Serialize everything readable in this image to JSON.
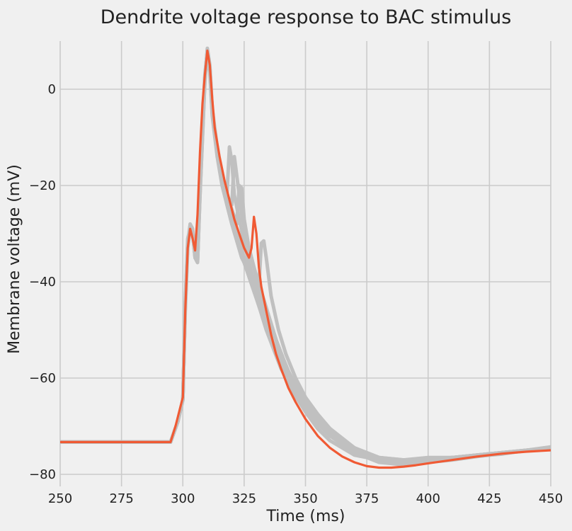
{
  "colors": {
    "background": "#f0f0f0",
    "grid": "#cbcbcb",
    "main_series": "#f05a34",
    "trial_series": "#c0c0c0"
  },
  "chart_data": {
    "type": "line",
    "title": "Dendrite voltage response to BAC stimulus",
    "xlabel": "Time (ms)",
    "ylabel": "Membrane voltage (mV)",
    "xlim": [
      250,
      450
    ],
    "ylim": [
      -82.5,
      10
    ],
    "grid": true,
    "x_ticks": [
      250,
      275,
      300,
      325,
      350,
      375,
      400,
      425,
      450
    ],
    "x_tick_labels": [
      "250",
      "275",
      "300",
      "325",
      "350",
      "375",
      "400",
      "425",
      "450"
    ],
    "y_ticks": [
      0,
      -20,
      -40,
      -60,
      -80
    ],
    "y_tick_labels": [
      "0",
      "−20",
      "−40",
      "−60",
      "−80"
    ],
    "series": [
      {
        "role": "trial",
        "x": [
          250,
          295,
          298,
          300,
          301,
          302,
          303,
          304,
          305,
          306,
          307,
          308,
          309,
          310,
          311,
          312,
          314,
          316,
          318,
          320,
          322,
          325,
          328,
          331,
          334,
          337,
          340,
          345,
          350,
          355,
          360,
          370,
          380,
          390,
          400,
          410,
          420,
          430,
          440,
          450
        ],
        "y": [
          -73.3,
          -73.3,
          -69,
          -64.5,
          -45,
          -32,
          -28,
          -29,
          -35,
          -36,
          -22,
          -10,
          2,
          8.5,
          5,
          -4,
          -12,
          -18,
          -22,
          -26,
          -30,
          -35,
          -40,
          -45,
          -50,
          -54,
          -58,
          -63,
          -67,
          -70.5,
          -73,
          -76,
          -77,
          -77,
          -76.5,
          -76.5,
          -76.2,
          -75.8,
          -75,
          -74.3
        ]
      },
      {
        "role": "trial",
        "x": [
          250,
          295,
          298,
          300,
          301,
          302,
          303,
          304,
          305,
          306,
          307,
          308,
          309,
          310,
          311,
          312,
          314,
          316,
          318,
          319,
          320,
          321,
          323,
          325,
          328,
          331,
          334,
          337,
          340,
          345,
          350,
          355,
          360,
          370,
          380,
          390,
          400,
          410,
          420,
          430,
          440,
          450
        ],
        "y": [
          -73.3,
          -73.3,
          -69,
          -64.5,
          -44,
          -31,
          -29,
          -30,
          -34,
          -35,
          -20,
          -8,
          3,
          8,
          4,
          -5,
          -13,
          -19,
          -22,
          -12,
          -15,
          -22,
          -27,
          -32,
          -38,
          -43,
          -48,
          -53,
          -57,
          -62.5,
          -66,
          -69.5,
          -72,
          -75.5,
          -77,
          -77.5,
          -77,
          -76.5,
          -76,
          -75.5,
          -75,
          -74.5
        ]
      },
      {
        "role": "trial",
        "x": [
          250,
          295,
          298,
          300,
          301,
          302,
          303,
          304,
          305,
          306,
          307,
          308,
          309,
          310,
          311,
          312,
          314,
          316,
          318,
          320,
          321,
          322,
          324,
          326,
          329,
          332,
          335,
          338,
          341,
          345,
          350,
          355,
          360,
          370,
          380,
          390,
          400,
          410,
          420,
          430,
          440,
          450
        ],
        "y": [
          -73.3,
          -73.3,
          -69,
          -64.5,
          -45,
          -31.5,
          -29,
          -30,
          -35,
          -35.5,
          -21,
          -9,
          2.5,
          8,
          4.5,
          -4.5,
          -12.5,
          -18.5,
          -22,
          -24,
          -14,
          -18,
          -26,
          -31,
          -37,
          -42,
          -47,
          -52,
          -56,
          -61,
          -65,
          -69,
          -71.5,
          -75,
          -77,
          -77.5,
          -77,
          -76.5,
          -76,
          -75.5,
          -75,
          -74.6
        ]
      },
      {
        "role": "trial",
        "x": [
          250,
          295,
          298,
          300,
          301,
          302,
          303,
          304,
          305,
          306,
          307,
          308,
          309,
          310,
          311,
          312,
          314,
          316,
          318,
          320,
          322,
          323,
          324,
          325,
          327,
          330,
          333,
          336,
          339,
          342,
          346,
          350,
          355,
          360,
          370,
          380,
          390,
          400,
          410,
          420,
          430,
          440,
          450
        ],
        "y": [
          -73.3,
          -73.3,
          -69,
          -64.5,
          -45,
          -32,
          -28.5,
          -29.5,
          -35,
          -35.5,
          -21,
          -9,
          2.5,
          8.2,
          4.5,
          -4.5,
          -12.5,
          -18.5,
          -22,
          -25,
          -28,
          -20,
          -20.5,
          -27,
          -33,
          -39,
          -44,
          -49,
          -53.5,
          -57.5,
          -61.5,
          -65,
          -68.5,
          -71,
          -74.5,
          -76.5,
          -77,
          -76.8,
          -76.5,
          -76,
          -75.5,
          -75,
          -74.5
        ]
      },
      {
        "role": "trial",
        "x": [
          250,
          295,
          298,
          300,
          301,
          302,
          303,
          304,
          305,
          306,
          307,
          308,
          309,
          310,
          311,
          312,
          314,
          316,
          318,
          320,
          324,
          328,
          331,
          332,
          333,
          334,
          336,
          339,
          342,
          346,
          350,
          355,
          360,
          370,
          380,
          390,
          400,
          410,
          420,
          430,
          440,
          450
        ],
        "y": [
          -73.3,
          -73.3,
          -69,
          -64.5,
          -46,
          -33,
          -29,
          -30,
          -35,
          -36,
          -22,
          -10,
          1.5,
          7.5,
          3.5,
          -5.5,
          -14,
          -20,
          -24,
          -28,
          -35,
          -39,
          -41,
          -32,
          -31.5,
          -35,
          -43,
          -50,
          -55,
          -60,
          -64,
          -67.5,
          -70.5,
          -74.5,
          -76.5,
          -77,
          -77,
          -76.5,
          -76,
          -75.5,
          -75,
          -74.5
        ]
      },
      {
        "role": "trial",
        "x": [
          250,
          295,
          298,
          300,
          301,
          302,
          303,
          304,
          305,
          306,
          307,
          308,
          309,
          310,
          311,
          312,
          314,
          316,
          318,
          320,
          323,
          326,
          329,
          332,
          335,
          338,
          341,
          345,
          350,
          355,
          360,
          370,
          380,
          390,
          400,
          410,
          420,
          430,
          440,
          450
        ],
        "y": [
          -73.3,
          -73.3,
          -69,
          -64.5,
          -45,
          -32,
          -28.5,
          -29.5,
          -34.5,
          -35.5,
          -21,
          -9,
          2,
          8,
          4,
          -5,
          -13.5,
          -19.5,
          -24,
          -28,
          -33,
          -37.5,
          -42,
          -46.5,
          -50.5,
          -54,
          -57,
          -61.5,
          -65.5,
          -69,
          -72,
          -75.5,
          -77.5,
          -78,
          -77.5,
          -77,
          -76.3,
          -75.7,
          -75.1,
          -74.6
        ]
      },
      {
        "role": "main",
        "x": [
          250,
          295,
          297,
          299,
          300,
          301,
          302,
          303,
          304,
          305,
          306,
          307,
          308,
          309,
          310,
          311,
          312,
          313,
          315,
          317,
          319,
          321,
          323,
          325,
          327,
          328,
          329,
          330,
          331,
          332,
          334,
          336,
          338,
          340,
          343,
          346,
          350,
          355,
          360,
          365,
          370,
          375,
          380,
          385,
          390,
          395,
          400,
          410,
          420,
          430,
          440,
          450
        ],
        "y": [
          -73.3,
          -73.3,
          -70,
          -66,
          -64,
          -46,
          -33,
          -29,
          -31,
          -33.5,
          -26,
          -13,
          -3,
          3,
          8,
          5,
          -2,
          -8,
          -14,
          -19,
          -23,
          -27,
          -30,
          -33,
          -35,
          -33,
          -26.5,
          -30,
          -37,
          -41,
          -46,
          -51,
          -55,
          -58,
          -62,
          -65,
          -68.5,
          -72,
          -74.5,
          -76.3,
          -77.5,
          -78.3,
          -78.6,
          -78.6,
          -78.4,
          -78.1,
          -77.7,
          -77,
          -76.3,
          -75.7,
          -75.3,
          -75
        ]
      }
    ]
  }
}
